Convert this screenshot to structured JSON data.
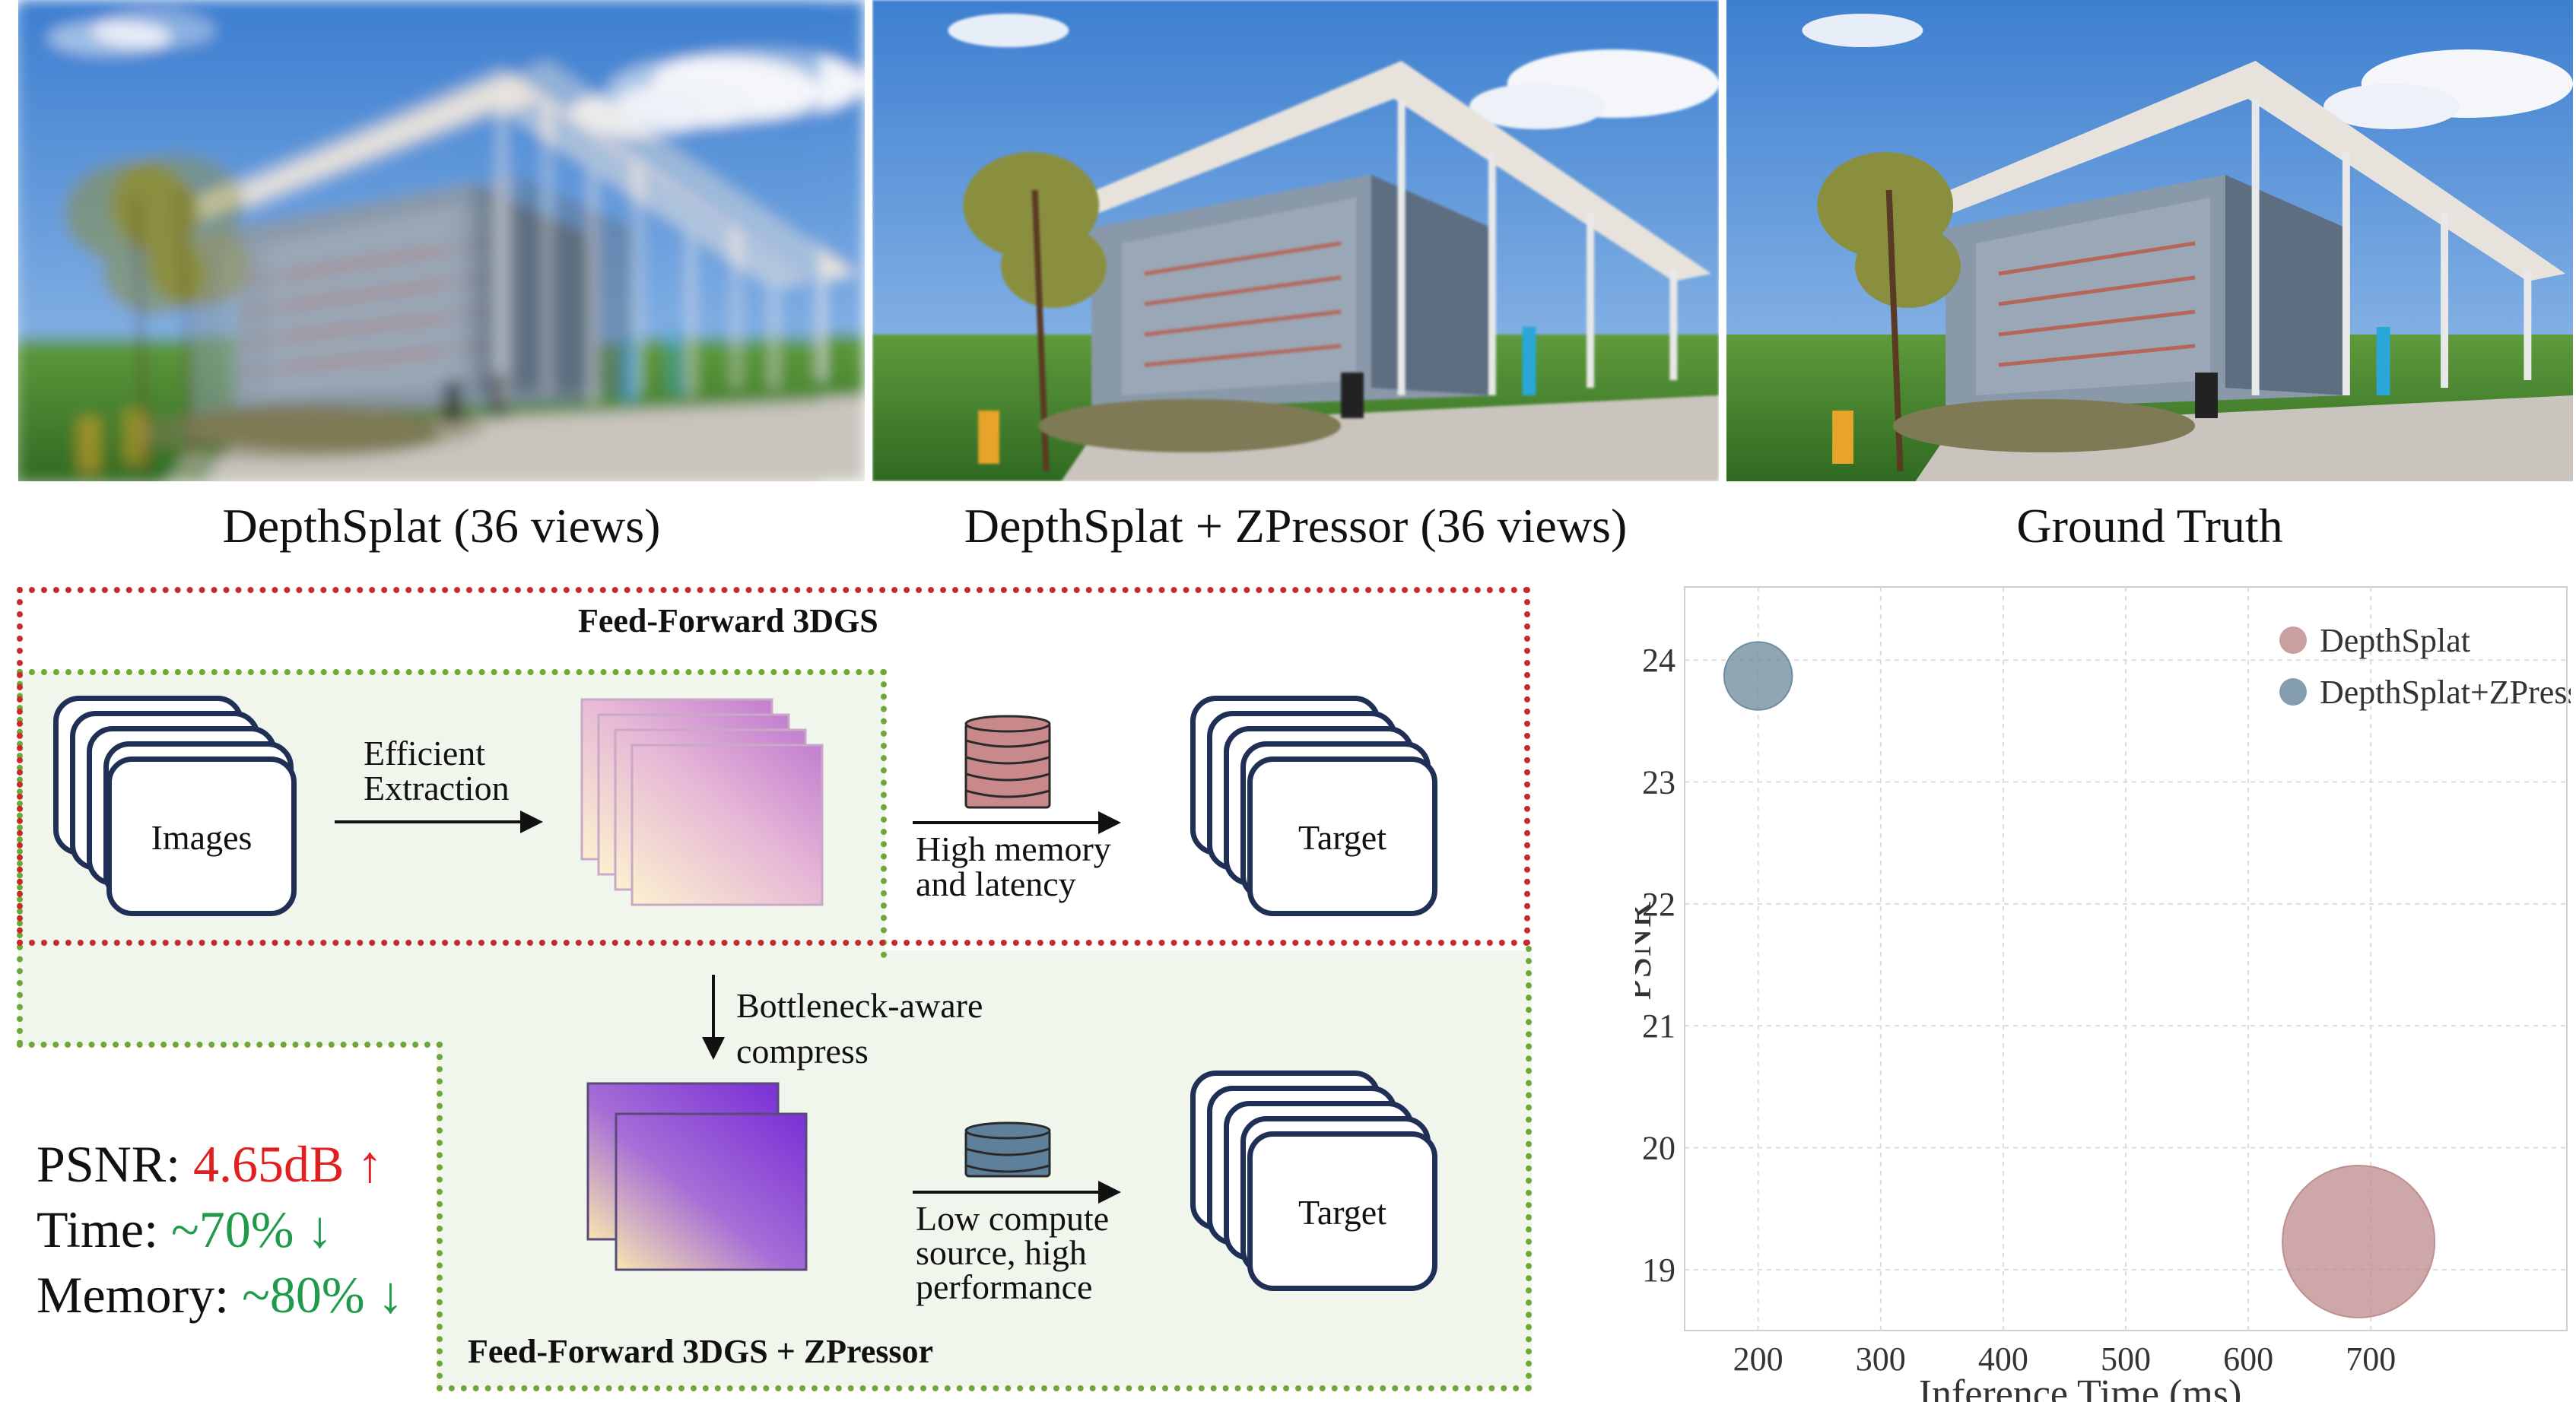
{
  "photos": [
    {
      "caption": "DepthSplat (36 views)",
      "quality": "blurred"
    },
    {
      "caption": "DepthSplat + ZPressor (36 views)",
      "quality": "sharp"
    },
    {
      "caption": "Ground Truth",
      "quality": "sharp"
    }
  ],
  "diagram": {
    "top_title": "Feed-Forward 3DGS",
    "bottom_title": "Feed-Forward 3DGS + ZPressor",
    "images_label": "Images",
    "extraction_line1": "Efficient",
    "extraction_line2": "Extraction",
    "memory_line1": "High memory",
    "memory_line2": "and latency",
    "target_top": "Target",
    "compress_line1": "Bottleneck-aware",
    "compress_line2": "compress",
    "lowcompute_line1": "Low compute",
    "lowcompute_line2": "source, high",
    "lowcompute_line3": "performance",
    "target_bottom": "Target",
    "colors": {
      "red_border": "#c62a2a",
      "green_border": "#6fa83a",
      "green_fill": "#f1f6ec",
      "card_border": "#1f2f55"
    }
  },
  "metrics": {
    "psnr_label": "PSNR: ",
    "psnr_value": "4.65dB",
    "psnr_arrow": "↑",
    "time_label": "Time: ",
    "time_value": "~70%",
    "time_arrow": "↓",
    "memory_label": "Memory: ",
    "memory_value": "~80%",
    "memory_arrow": "↓"
  },
  "chart_data": {
    "type": "scatter",
    "xlabel": "Inference Time (ms)",
    "ylabel": "PSNR",
    "xlim": [
      140,
      860
    ],
    "ylim": [
      18.5,
      24.6
    ],
    "xticks": [
      200,
      300,
      400,
      500,
      600,
      700
    ],
    "yticks": [
      19,
      20,
      21,
      22,
      23,
      24
    ],
    "grid": true,
    "legend_position": "top-right",
    "series": [
      {
        "name": "DepthSplat",
        "color": "#c08e8f",
        "x": [
          690
        ],
        "y": [
          19.23
        ],
        "bubble_size": 1.0
      },
      {
        "name": "DepthSplat+ZPressor",
        "color": "#6f8da0",
        "x": [
          200
        ],
        "y": [
          23.87
        ],
        "bubble_size": 0.2
      }
    ]
  }
}
